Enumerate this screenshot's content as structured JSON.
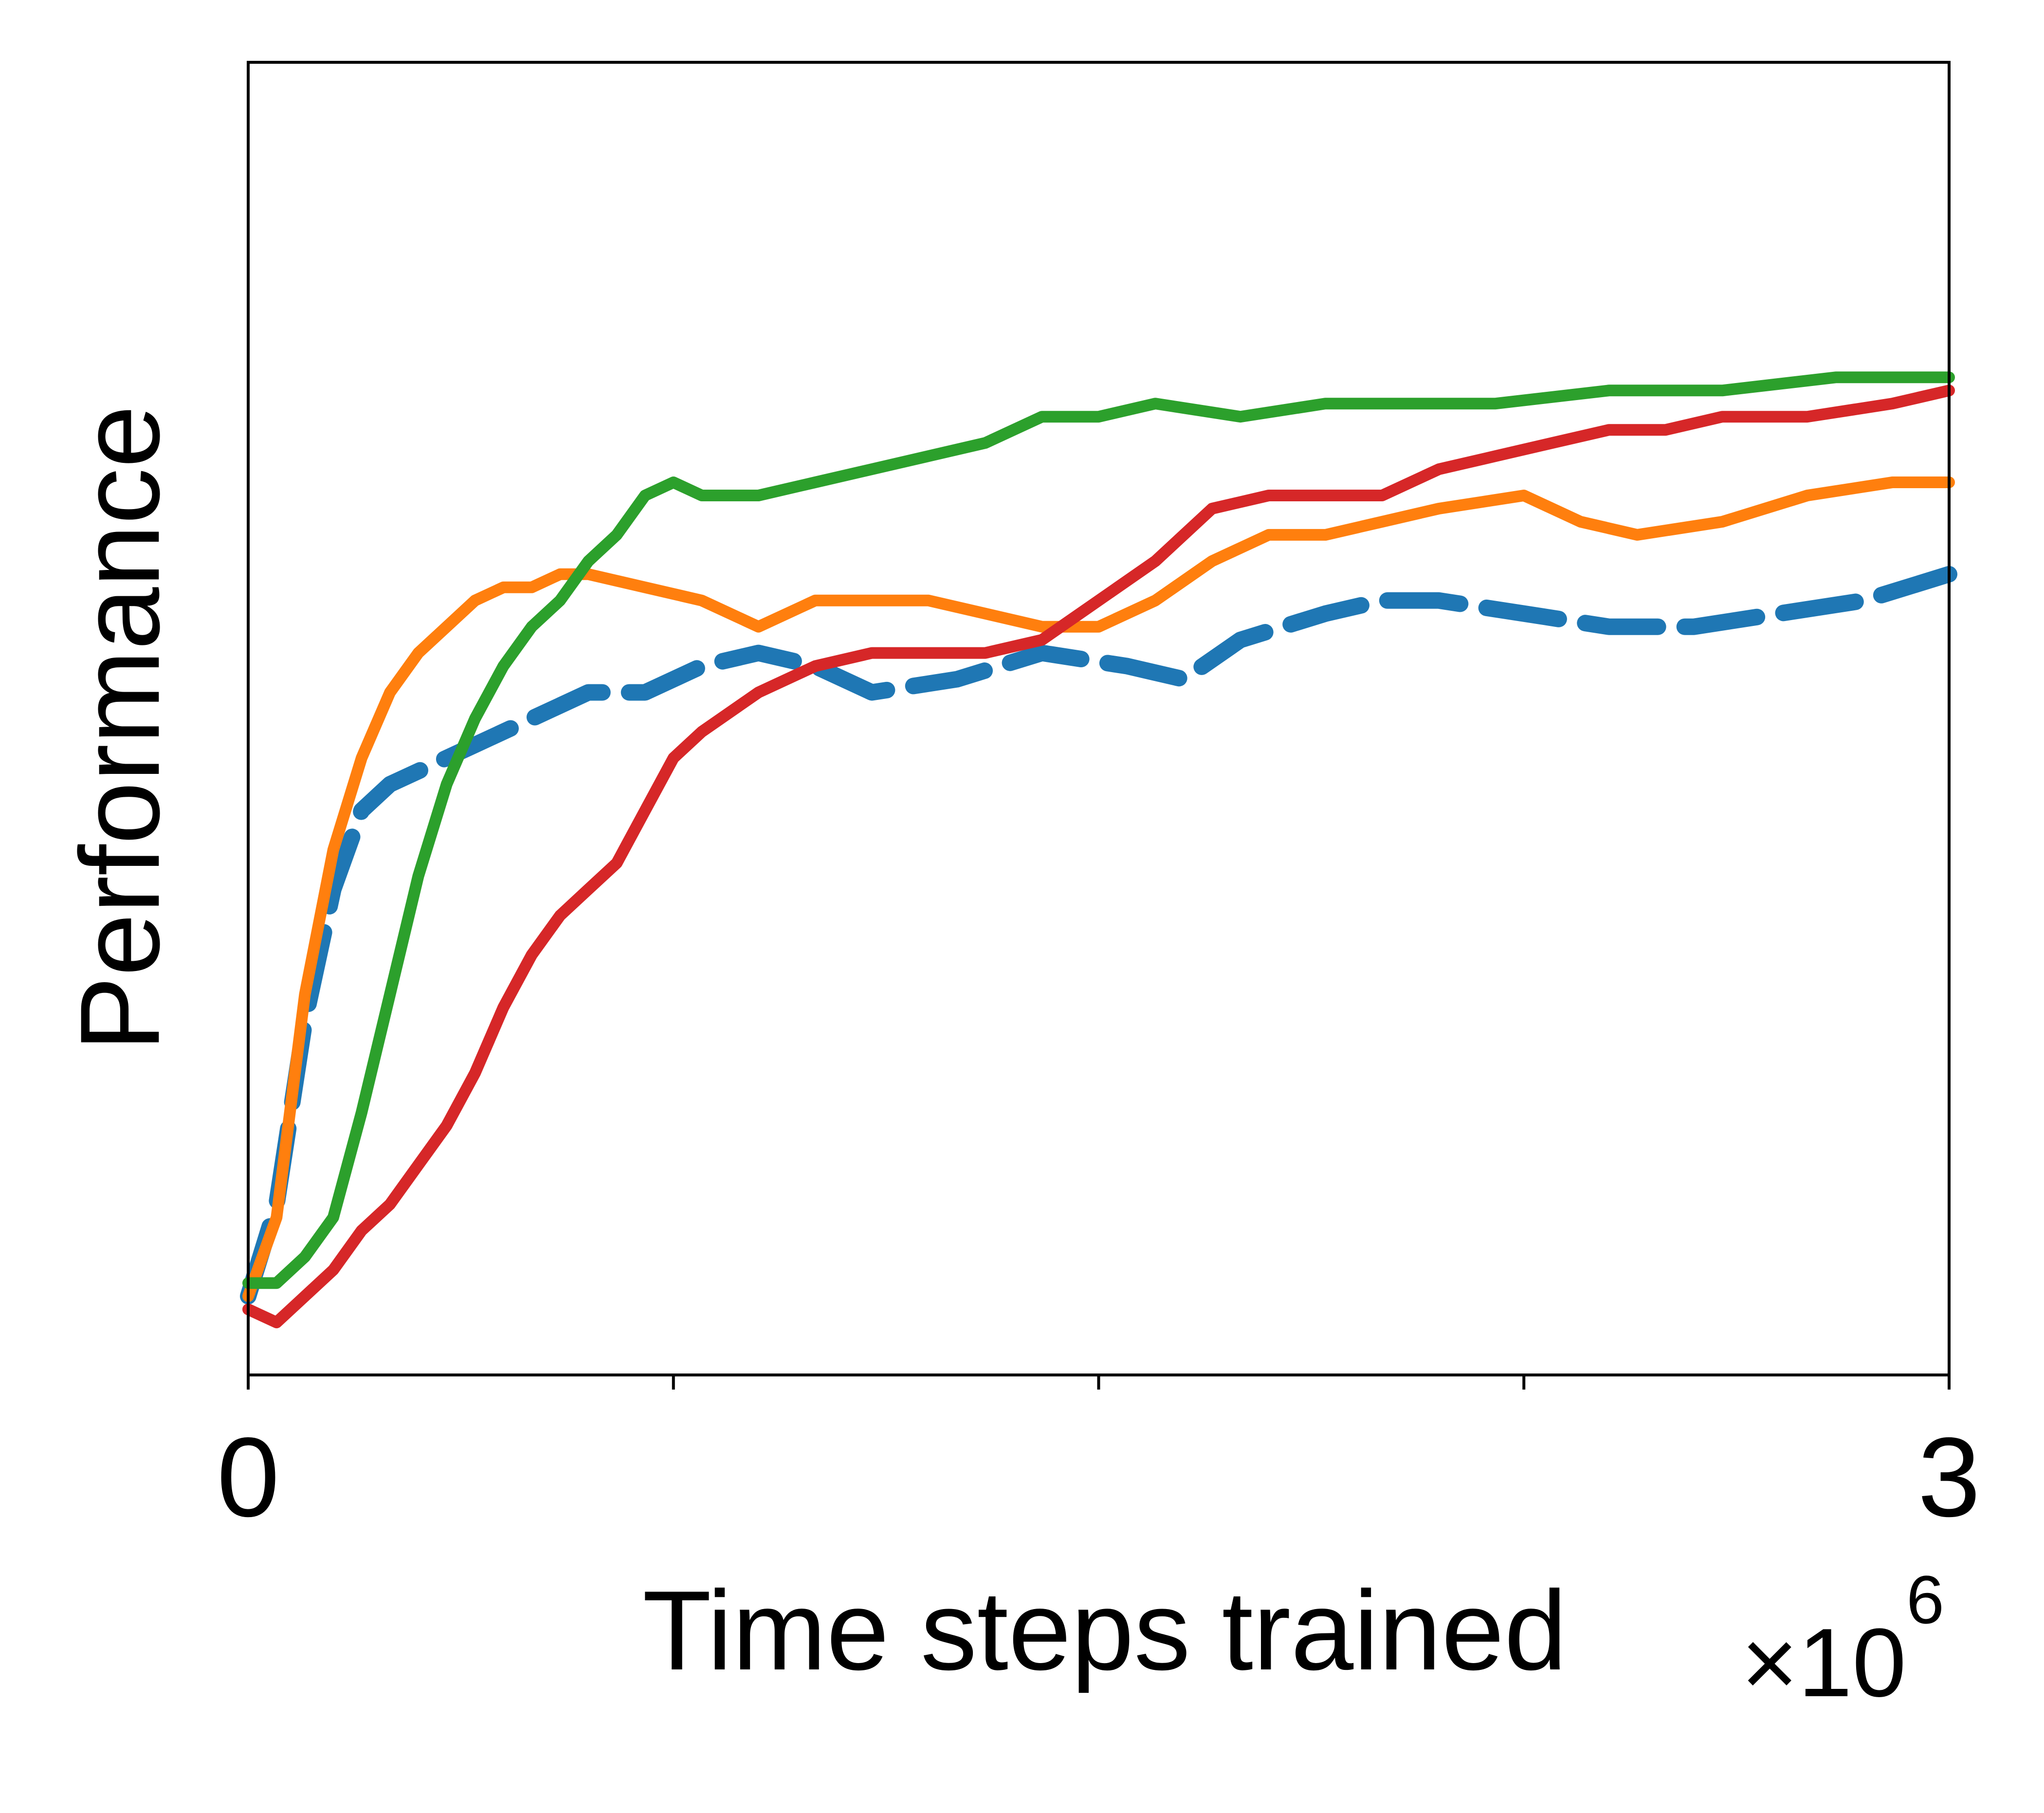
{
  "chart_data": {
    "type": "line",
    "xlabel": "Time steps trained",
    "ylabel": "Performance",
    "x_offset_label": {
      "base": "×10",
      "exponent": "6"
    },
    "xlim": [
      0,
      3
    ],
    "ylim": [
      0,
      1
    ],
    "x_tick_labels": [
      {
        "value": 0,
        "label": "0"
      },
      {
        "value": 3,
        "label": "3"
      }
    ],
    "x_minor_ticks": [
      0.75,
      1.5,
      2.25
    ],
    "y_ticks": [],
    "grid": false,
    "legend": "none",
    "series": [
      {
        "color": "#1f77b4",
        "dashed": true,
        "x": [
          0.0,
          0.05,
          0.1,
          0.15,
          0.2,
          0.25,
          0.3,
          0.4,
          0.5,
          0.6,
          0.7,
          0.8,
          0.9,
          1.0,
          1.1,
          1.25,
          1.4,
          1.55,
          1.65,
          1.75,
          1.9,
          2.0,
          2.1,
          2.25,
          2.4,
          2.55,
          2.7,
          2.85,
          3.0
        ],
        "y": [
          0.06,
          0.13,
          0.27,
          0.37,
          0.43,
          0.45,
          0.46,
          0.48,
          0.5,
          0.52,
          0.52,
          0.54,
          0.55,
          0.54,
          0.52,
          0.53,
          0.55,
          0.54,
          0.53,
          0.56,
          0.58,
          0.59,
          0.59,
          0.58,
          0.57,
          0.57,
          0.58,
          0.59,
          0.61
        ]
      },
      {
        "color": "#ff7f0e",
        "dashed": false,
        "x": [
          0.0,
          0.05,
          0.1,
          0.15,
          0.2,
          0.25,
          0.3,
          0.35,
          0.4,
          0.45,
          0.5,
          0.55,
          0.6,
          0.7,
          0.8,
          0.9,
          1.0,
          1.1,
          1.2,
          1.3,
          1.4,
          1.5,
          1.6,
          1.7,
          1.8,
          1.9,
          2.0,
          2.1,
          2.25,
          2.35,
          2.45,
          2.6,
          2.75,
          2.9,
          3.0
        ],
        "y": [
          0.06,
          0.12,
          0.29,
          0.4,
          0.47,
          0.52,
          0.55,
          0.57,
          0.59,
          0.6,
          0.6,
          0.61,
          0.61,
          0.6,
          0.59,
          0.57,
          0.59,
          0.59,
          0.59,
          0.58,
          0.57,
          0.57,
          0.59,
          0.62,
          0.64,
          0.64,
          0.65,
          0.66,
          0.67,
          0.65,
          0.64,
          0.65,
          0.67,
          0.68,
          0.68
        ]
      },
      {
        "color": "#2ca02c",
        "dashed": false,
        "x": [
          0.0,
          0.05,
          0.1,
          0.15,
          0.2,
          0.25,
          0.3,
          0.35,
          0.4,
          0.45,
          0.5,
          0.55,
          0.6,
          0.65,
          0.7,
          0.75,
          0.8,
          0.9,
          1.0,
          1.1,
          1.2,
          1.3,
          1.4,
          1.5,
          1.6,
          1.75,
          1.9,
          2.0,
          2.2,
          2.4,
          2.6,
          2.8,
          3.0
        ],
        "y": [
          0.07,
          0.07,
          0.09,
          0.12,
          0.2,
          0.29,
          0.38,
          0.45,
          0.5,
          0.54,
          0.57,
          0.59,
          0.62,
          0.64,
          0.67,
          0.68,
          0.67,
          0.67,
          0.68,
          0.69,
          0.7,
          0.71,
          0.73,
          0.73,
          0.74,
          0.73,
          0.74,
          0.74,
          0.74,
          0.75,
          0.75,
          0.76,
          0.76
        ]
      },
      {
        "color": "#d62728",
        "dashed": false,
        "x": [
          0.0,
          0.05,
          0.1,
          0.15,
          0.2,
          0.25,
          0.3,
          0.35,
          0.4,
          0.45,
          0.5,
          0.55,
          0.6,
          0.65,
          0.7,
          0.75,
          0.8,
          0.9,
          1.0,
          1.1,
          1.2,
          1.3,
          1.4,
          1.5,
          1.6,
          1.7,
          1.8,
          1.9,
          2.0,
          2.1,
          2.2,
          2.3,
          2.4,
          2.5,
          2.6,
          2.75,
          2.9,
          3.0
        ],
        "y": [
          0.05,
          0.04,
          0.06,
          0.08,
          0.11,
          0.13,
          0.16,
          0.19,
          0.23,
          0.28,
          0.32,
          0.35,
          0.37,
          0.39,
          0.43,
          0.47,
          0.49,
          0.52,
          0.54,
          0.55,
          0.55,
          0.55,
          0.56,
          0.59,
          0.62,
          0.66,
          0.67,
          0.67,
          0.67,
          0.69,
          0.7,
          0.71,
          0.72,
          0.72,
          0.73,
          0.73,
          0.74,
          0.75
        ]
      }
    ]
  }
}
